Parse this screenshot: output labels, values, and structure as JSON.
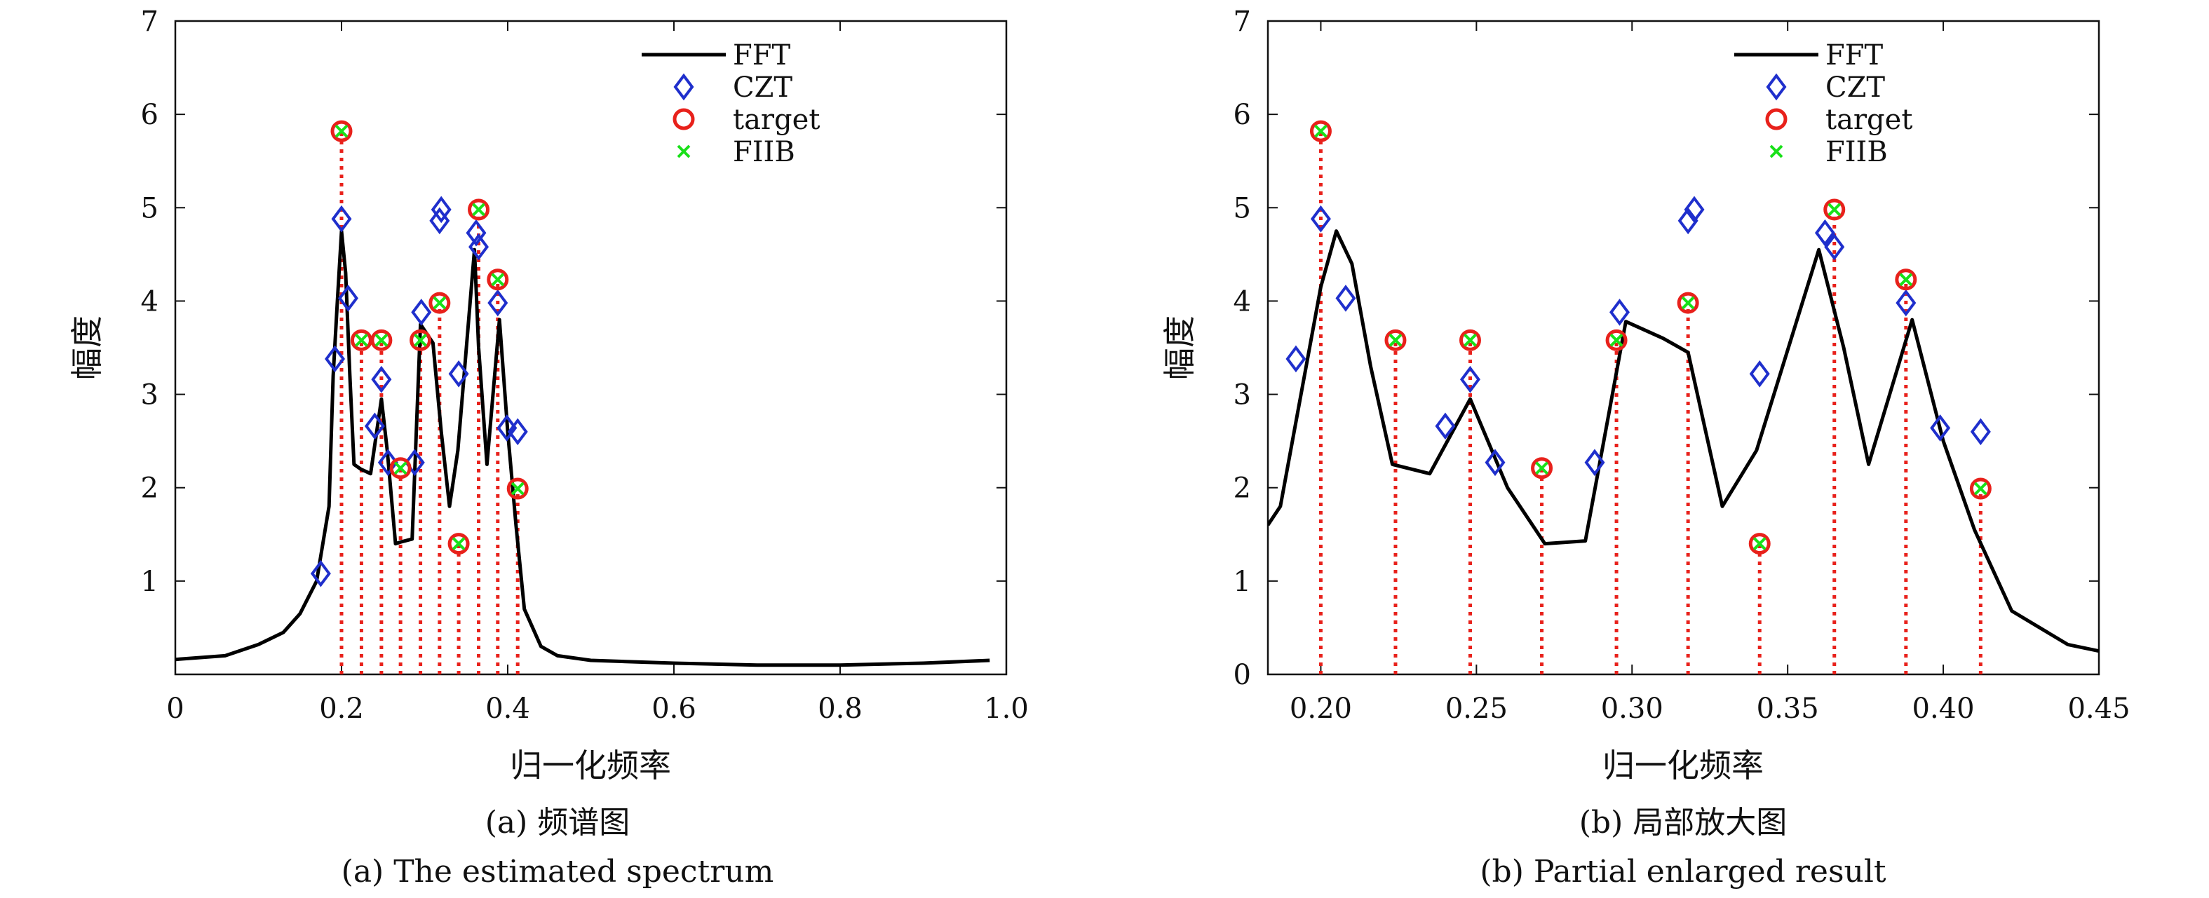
{
  "chart_data": [
    {
      "type": "line",
      "panel": "a",
      "xlim": [
        0,
        1.0
      ],
      "ylim": [
        0,
        7
      ],
      "xticks": [
        "0",
        "0.2",
        "0.4",
        "0.6",
        "0.8",
        "1.0"
      ],
      "xtick_values": [
        0,
        0.2,
        0.4,
        0.6,
        0.8,
        1.0
      ],
      "yticks": [
        "1",
        "2",
        "3",
        "4",
        "5",
        "6",
        "7"
      ],
      "ytick_values": [
        1,
        2,
        3,
        4,
        5,
        6,
        7
      ],
      "xlabel": "归一化频率",
      "ylabel": "幅度",
      "caption_cn": "(a) 频谱图",
      "caption_en": "(a) The estimated spectrum",
      "legend": [
        "FFT",
        "CZT",
        "target",
        "FIIB"
      ],
      "legend_position": "top-right",
      "series": [
        {
          "name": "FFT",
          "style": "line",
          "color": "#000000",
          "x": [
            0,
            0.06,
            0.1,
            0.13,
            0.15,
            0.17,
            0.185,
            0.19,
            0.195,
            0.2,
            0.205,
            0.21,
            0.215,
            0.223,
            0.235,
            0.248,
            0.255,
            0.265,
            0.272,
            0.285,
            0.295,
            0.31,
            0.32,
            0.33,
            0.34,
            0.36,
            0.365,
            0.375,
            0.39,
            0.4,
            0.41,
            0.42,
            0.44,
            0.46,
            0.5,
            0.6,
            0.7,
            0.8,
            0.9,
            0.98
          ],
          "y": [
            0.16,
            0.2,
            0.32,
            0.45,
            0.65,
            1.0,
            1.8,
            3.2,
            4.0,
            4.75,
            4.3,
            3.2,
            2.25,
            2.2,
            2.15,
            2.95,
            2.4,
            1.4,
            1.42,
            1.45,
            3.75,
            3.55,
            2.6,
            1.8,
            2.4,
            4.55,
            3.5,
            2.25,
            3.8,
            2.6,
            1.6,
            0.7,
            0.3,
            0.2,
            0.15,
            0.12,
            0.1,
            0.1,
            0.12,
            0.15
          ]
        },
        {
          "name": "CZT",
          "style": "marker-diamond",
          "color": "#1f2fcc",
          "x": [
            0.175,
            0.192,
            0.2,
            0.208,
            0.24,
            0.248,
            0.256,
            0.288,
            0.296,
            0.318,
            0.32,
            0.341,
            0.362,
            0.365,
            0.388,
            0.399,
            0.412
          ],
          "y": [
            1.08,
            3.38,
            4.88,
            4.03,
            2.66,
            3.16,
            2.27,
            2.27,
            3.88,
            4.86,
            4.98,
            3.22,
            4.73,
            4.58,
            3.98,
            2.64,
            2.6
          ]
        },
        {
          "name": "target",
          "style": "marker-circle",
          "color": "#e8211b",
          "x": [
            0.2,
            0.224,
            0.248,
            0.271,
            0.295,
            0.318,
            0.341,
            0.365,
            0.388,
            0.412
          ],
          "y": [
            5.82,
            3.58,
            3.58,
            2.21,
            3.58,
            3.98,
            1.4,
            4.98,
            4.23,
            1.99
          ]
        },
        {
          "name": "FIIB",
          "style": "marker-x",
          "color": "#19e019",
          "x": [
            0.2,
            0.224,
            0.248,
            0.271,
            0.295,
            0.318,
            0.341,
            0.365,
            0.388,
            0.412
          ],
          "y": [
            5.82,
            3.58,
            3.58,
            2.21,
            3.58,
            3.98,
            1.4,
            4.98,
            4.23,
            1.99
          ]
        }
      ]
    },
    {
      "type": "line",
      "panel": "b",
      "xlim": [
        0.183,
        0.45
      ],
      "ylim": [
        0,
        7
      ],
      "xticks": [
        "0.20",
        "0.25",
        "0.30",
        "0.35",
        "0.40",
        "0.45"
      ],
      "xtick_values": [
        0.2,
        0.25,
        0.3,
        0.35,
        0.4,
        0.45
      ],
      "yticks": [
        "0",
        "1",
        "2",
        "3",
        "4",
        "5",
        "6",
        "7"
      ],
      "ytick_values": [
        0,
        1,
        2,
        3,
        4,
        5,
        6,
        7
      ],
      "xlabel": "归一化频率",
      "ylabel": "幅度",
      "caption_cn": "(b) 局部放大图",
      "caption_en": "(b) Partial enlarged result",
      "legend": [
        "FFT",
        "CZT",
        "target",
        "FIIB"
      ],
      "legend_position": "top-right",
      "series": [
        {
          "name": "FFT",
          "style": "line",
          "color": "#000000",
          "x": [
            0.183,
            0.187,
            0.2,
            0.205,
            0.21,
            0.216,
            0.223,
            0.235,
            0.248,
            0.26,
            0.272,
            0.285,
            0.298,
            0.31,
            0.318,
            0.329,
            0.34,
            0.36,
            0.368,
            0.376,
            0.39,
            0.4,
            0.41,
            0.422,
            0.44,
            0.45
          ],
          "y": [
            1.6,
            1.8,
            4.15,
            4.75,
            4.4,
            3.3,
            2.25,
            2.15,
            2.95,
            2.0,
            1.4,
            1.43,
            3.78,
            3.6,
            3.45,
            1.8,
            2.4,
            4.55,
            3.5,
            2.25,
            3.8,
            2.5,
            1.55,
            0.68,
            0.32,
            0.25
          ]
        },
        {
          "name": "CZT",
          "style": "marker-diamond",
          "color": "#1f2fcc",
          "x": [
            0.192,
            0.2,
            0.208,
            0.24,
            0.248,
            0.256,
            0.288,
            0.296,
            0.318,
            0.32,
            0.341,
            0.362,
            0.365,
            0.388,
            0.399,
            0.412
          ],
          "y": [
            3.38,
            4.88,
            4.03,
            2.66,
            3.16,
            2.27,
            2.27,
            3.88,
            4.86,
            4.98,
            3.22,
            4.73,
            4.58,
            3.98,
            2.64,
            2.6
          ]
        },
        {
          "name": "target",
          "style": "marker-circle",
          "color": "#e8211b",
          "x": [
            0.2,
            0.224,
            0.248,
            0.271,
            0.295,
            0.318,
            0.341,
            0.365,
            0.388,
            0.412
          ],
          "y": [
            5.82,
            3.58,
            3.58,
            2.21,
            3.58,
            3.98,
            1.4,
            4.98,
            4.23,
            1.99
          ]
        },
        {
          "name": "FIIB",
          "style": "marker-x",
          "color": "#19e019",
          "x": [
            0.2,
            0.224,
            0.248,
            0.271,
            0.295,
            0.318,
            0.341,
            0.365,
            0.388,
            0.412
          ],
          "y": [
            5.82,
            3.58,
            3.58,
            2.21,
            3.58,
            3.98,
            1.4,
            4.98,
            4.23,
            1.99
          ]
        }
      ]
    }
  ]
}
